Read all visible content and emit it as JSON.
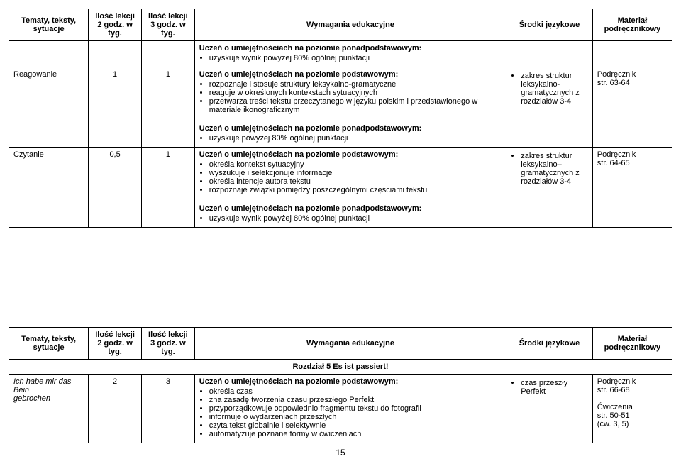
{
  "headers": {
    "col1_l1": "Tematy, teksty,",
    "col1_l2": "sytuacje",
    "col2_l1": "Ilość lekcji",
    "col2_l2": "2 godz. w tyg.",
    "col3_l1": "Ilość lekcji",
    "col3_l2": "3 godz. w tyg.",
    "col4": "Wymagania edukacyjne",
    "col5": "Środki językowe",
    "col6_l1": "Materiał",
    "col6_l2": "podręcznikowy"
  },
  "top_row": {
    "text1": "Uczeń o umiejętnościach na poziomie ponadpodstawowym:",
    "bullet": "uzyskuje wynik powyżej 80% ogólnej punktacji"
  },
  "row_reag": {
    "topic": "Reagowanie",
    "n1": "1",
    "n2": "1",
    "p_head": "Uczeń o umiejętnościach na poziomie podstawowym:",
    "b1": "rozpoznaje i stosuje struktury leksykalno-gramatyczne",
    "b2": "reaguje w określonych kontekstach sytuacyjnych",
    "b3": "przetwarza treści tekstu przeczytanego w języku polskim i przedstawionego w materiale ikonograficznym",
    "pp_head": "Uczeń o umiejętnościach na poziomie ponadpodstawowym:",
    "pp_b1": "uzyskuje powyżej 80% ogólnej punktacji",
    "sj_b1": "zakres struktur leksykalno-gramatycznych z rozdziałów 3-4",
    "mat1": "Podręcznik",
    "mat2": "str. 63-64"
  },
  "row_czy": {
    "topic": "Czytanie",
    "n1": "0,5",
    "n2": "1",
    "p_head": "Uczeń o umiejętnościach na poziomie podstawowym:",
    "b1": "określa kontekst sytuacyjny",
    "b2": "wyszukuje i selekcjonuje informacje",
    "b3": "określa intencje autora tekstu",
    "b4": "rozpoznaje związki pomiędzy poszczególnymi częściami tekstu",
    "pp_head": "Uczeń o umiejętnościach na poziomie ponadpodstawowym:",
    "pp_b1": "uzyskuje wynik powyżej 80% ogólnej punktacji",
    "sj_b1a": "zakres struktur",
    "sj_b1b": "leksykalno–",
    "sj_b1c": "gramatycznych z",
    "sj_b1d": "rozdziałów 3-4",
    "mat1": "Podręcznik",
    "mat2": "str. 64-65"
  },
  "section": {
    "title": "Rozdział 5 Es ist passiert!"
  },
  "row_ich": {
    "topic_l1": "Ich habe mir das Bein",
    "topic_l2": "gebrochen",
    "n1": "2",
    "n2": "3",
    "p_head": "Uczeń o umiejętnościach na poziomie podstawowym:",
    "b1": "określa czas",
    "b2": "zna zasadę tworzenia czasu przeszłego Perfekt",
    "b3": "przyporządkowuje odpowiednio fragmentu tekstu do fotografii",
    "b4": "informuje o wydarzeniach przeszłych",
    "b5": "czyta tekst globalnie i selektywnie",
    "b6": "automatyzuje poznane formy w ćwiczeniach",
    "sj_b1": "czas przeszły Perfekt",
    "mat1": "Podręcznik",
    "mat2": "str. 66-68",
    "mat3": "Ćwiczenia",
    "mat4": "str. 50-51",
    "mat5": "(ćw. 3, 5)"
  },
  "page_number": "15"
}
